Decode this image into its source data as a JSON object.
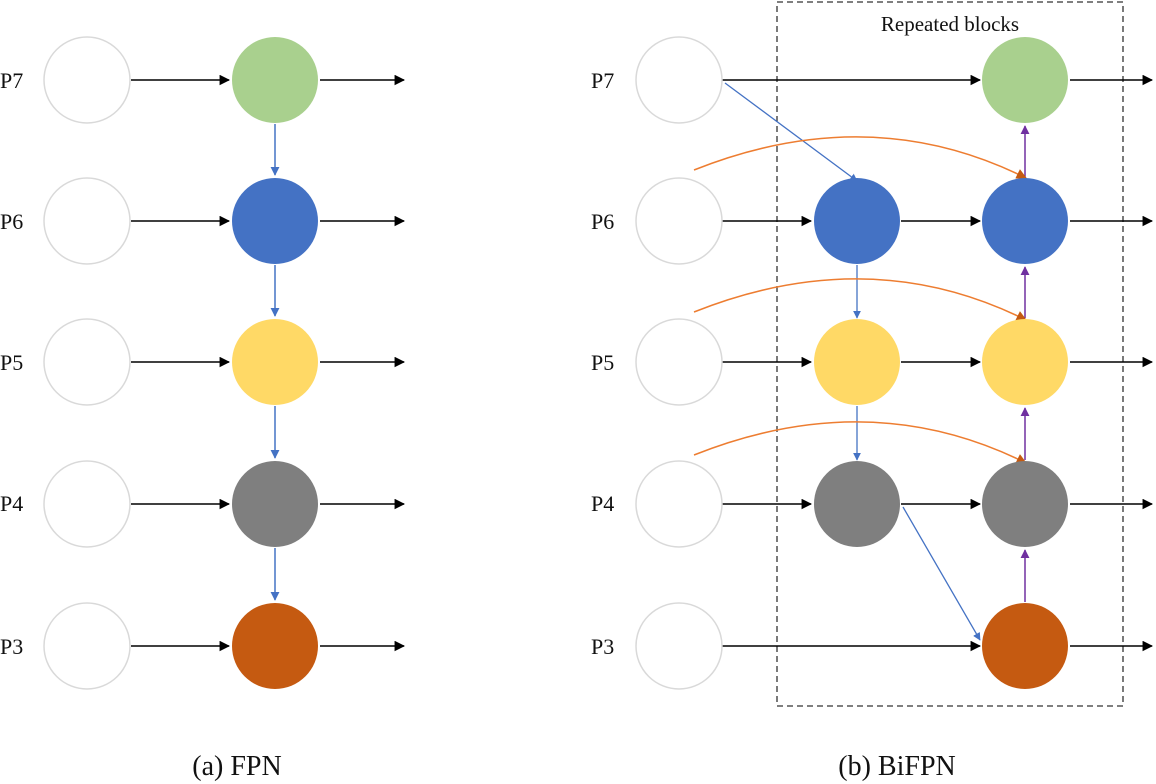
{
  "levels": [
    "P7",
    "P6",
    "P5",
    "P4",
    "P3"
  ],
  "fpn": {
    "caption": "(a) FPN"
  },
  "bifpn": {
    "caption": "(b) BiFPN",
    "block_label": "Repeated blocks"
  },
  "colors": {
    "P7": "#a9d08e",
    "P6": "#4472c4",
    "P5": "#ffd966",
    "P4": "#7f7f7f",
    "P3": "#c55a11",
    "input_stroke": "#d9d9d9",
    "lateral_edge": "#000000",
    "top_down_edge": "#4472c4",
    "bottom_up_edge": "#7030a0",
    "skip_edge": "#ed7d31"
  }
}
